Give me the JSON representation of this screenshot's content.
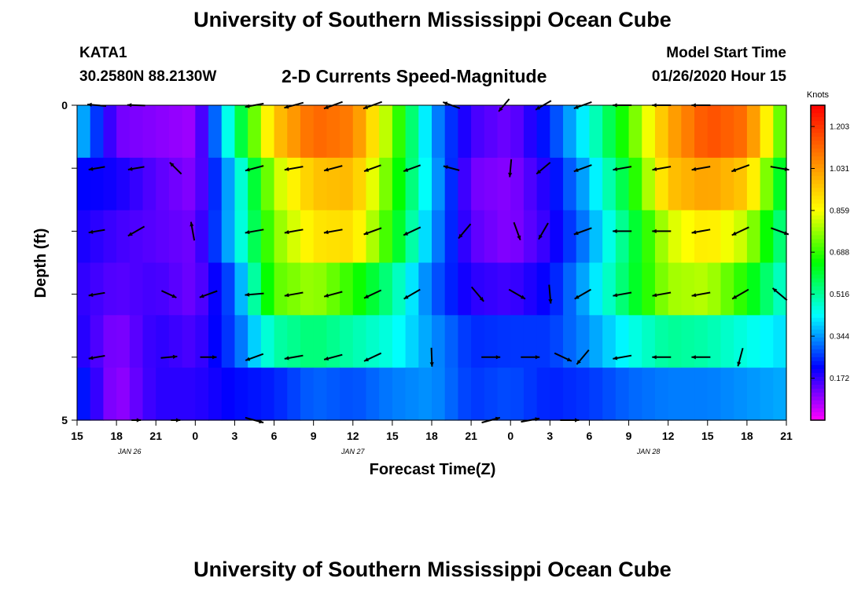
{
  "header": {
    "title": "University of Southern Mississippi Ocean Cube",
    "station_id": "KATA1",
    "station_coords": "30.2580N 88.2130W",
    "plot_title": "2-D Currents Speed-Magnitude",
    "model_start_label": "Model Start Time",
    "model_start_value": "01/26/2020 Hour 15"
  },
  "footer": {
    "title": "University of Southern Mississippi Ocean Cube"
  },
  "chart_data": {
    "type": "heatmap",
    "title": "2-D Currents Speed-Magnitude",
    "xlabel": "Forecast Time(Z)",
    "ylabel": "Depth (ft)",
    "x_range_hours": [
      0,
      54
    ],
    "x_ticks": [
      "15",
      "18",
      "21",
      "0",
      "3",
      "6",
      "9",
      "12",
      "15",
      "18",
      "21",
      "0",
      "3",
      "6",
      "9",
      "12",
      "15",
      "18",
      "21"
    ],
    "date_labels": [
      {
        "text": "JAN  26",
        "hour": 4
      },
      {
        "text": "JAN  27",
        "hour": 21
      },
      {
        "text": "JAN  28",
        "hour": 43.5
      }
    ],
    "y_range_ft": [
      0,
      5
    ],
    "y_tick_labels": [
      {
        "value": 0,
        "label": "0"
      },
      {
        "value": 1,
        "label": ""
      },
      {
        "value": 2,
        "label": ""
      },
      {
        "value": 3,
        "label": ""
      },
      {
        "value": 4,
        "label": ""
      },
      {
        "value": 5,
        "label": "5"
      }
    ],
    "colorbar": {
      "label": "Knots",
      "min": 0.0,
      "max": 1.29,
      "ticks": [
        0.172,
        0.344,
        0.516,
        0.688,
        0.859,
        1.031,
        1.203
      ],
      "colors": [
        "#ff00ff",
        "#0000ff",
        "#00ffff",
        "#00ff00",
        "#ffff00",
        "#ff8000",
        "#ff0000"
      ]
    },
    "speed_layers_note": "Each row is a depth layer; values are speed in knots sampled at forecast hours 0..54 every 3 h.",
    "speed_layers": [
      [
        0.4,
        0.12,
        0.1,
        0.08,
        0.52,
        0.95,
        1.12,
        1.08,
        0.75,
        0.35,
        0.16,
        0.12,
        0.25,
        0.45,
        0.7,
        1.0,
        1.16,
        1.1,
        0.66
      ],
      [
        0.22,
        0.2,
        0.14,
        0.1,
        0.4,
        0.8,
        0.96,
        0.98,
        0.7,
        0.38,
        0.12,
        0.1,
        0.2,
        0.38,
        0.62,
        0.96,
        1.02,
        0.95,
        0.55
      ],
      [
        0.2,
        0.16,
        0.14,
        0.12,
        0.4,
        0.75,
        0.9,
        0.92,
        0.66,
        0.35,
        0.14,
        0.1,
        0.18,
        0.34,
        0.56,
        0.82,
        0.9,
        0.8,
        0.5
      ],
      [
        0.18,
        0.14,
        0.16,
        0.12,
        0.3,
        0.72,
        0.78,
        0.68,
        0.52,
        0.3,
        0.18,
        0.16,
        0.22,
        0.38,
        0.58,
        0.78,
        0.8,
        0.66,
        0.45
      ],
      [
        0.2,
        0.1,
        0.18,
        0.15,
        0.28,
        0.5,
        0.55,
        0.5,
        0.45,
        0.34,
        0.25,
        0.26,
        0.26,
        0.34,
        0.44,
        0.52,
        0.5,
        0.45,
        0.4
      ],
      [
        0.26,
        0.08,
        0.18,
        0.18,
        0.22,
        0.24,
        0.3,
        0.28,
        0.32,
        0.34,
        0.26,
        0.28,
        0.24,
        0.26,
        0.3,
        0.32,
        0.32,
        0.34,
        0.36
      ]
    ],
    "vectors_note": "Current vectors: hour = forecast hour, depth in ft, dir = direction in degrees (0 = east, counter-clockwise), speed in knots.",
    "vectors": [
      {
        "hour": 1.5,
        "depth": 0,
        "dir": 175,
        "speed": 0.4
      },
      {
        "hour": 4.5,
        "depth": 0,
        "dir": 178,
        "speed": 0.38
      },
      {
        "hour": 13.5,
        "depth": 0,
        "dir": 190,
        "speed": 0.4
      },
      {
        "hour": 16.5,
        "depth": 0,
        "dir": 195,
        "speed": 0.42
      },
      {
        "hour": 19.5,
        "depth": 0,
        "dir": 200,
        "speed": 0.42
      },
      {
        "hour": 22.5,
        "depth": 0,
        "dir": 200,
        "speed": 0.42
      },
      {
        "hour": 28.5,
        "depth": 0,
        "dir": 160,
        "speed": 0.38
      },
      {
        "hour": 32.5,
        "depth": 0,
        "dir": 230,
        "speed": 0.35
      },
      {
        "hour": 35.5,
        "depth": 0,
        "dir": 210,
        "speed": 0.38
      },
      {
        "hour": 38.5,
        "depth": 0,
        "dir": 200,
        "speed": 0.4
      },
      {
        "hour": 41.5,
        "depth": 0,
        "dir": 180,
        "speed": 0.4
      },
      {
        "hour": 44.5,
        "depth": 0,
        "dir": 180,
        "speed": 0.4
      },
      {
        "hour": 47.5,
        "depth": 0,
        "dir": 180,
        "speed": 0.4
      },
      {
        "hour": 1.5,
        "depth": 1,
        "dir": 190,
        "speed": 0.35
      },
      {
        "hour": 4.5,
        "depth": 1,
        "dir": 190,
        "speed": 0.35
      },
      {
        "hour": 7.5,
        "depth": 1,
        "dir": 135,
        "speed": 0.35
      },
      {
        "hour": 13.5,
        "depth": 1,
        "dir": 195,
        "speed": 0.4
      },
      {
        "hour": 16.5,
        "depth": 1,
        "dir": 190,
        "speed": 0.4
      },
      {
        "hour": 19.5,
        "depth": 1,
        "dir": 195,
        "speed": 0.4
      },
      {
        "hour": 22.5,
        "depth": 1,
        "dir": 200,
        "speed": 0.38
      },
      {
        "hour": 25.5,
        "depth": 1,
        "dir": 200,
        "speed": 0.38
      },
      {
        "hour": 28.5,
        "depth": 1,
        "dir": 165,
        "speed": 0.35
      },
      {
        "hour": 33.0,
        "depth": 1,
        "dir": 265,
        "speed": 0.38
      },
      {
        "hour": 35.5,
        "depth": 1,
        "dir": 220,
        "speed": 0.38
      },
      {
        "hour": 38.5,
        "depth": 1,
        "dir": 200,
        "speed": 0.4
      },
      {
        "hour": 41.5,
        "depth": 1,
        "dir": 190,
        "speed": 0.4
      },
      {
        "hour": 44.5,
        "depth": 1,
        "dir": 190,
        "speed": 0.4
      },
      {
        "hour": 47.5,
        "depth": 1,
        "dir": 190,
        "speed": 0.4
      },
      {
        "hour": 50.5,
        "depth": 1,
        "dir": 200,
        "speed": 0.4
      },
      {
        "hour": 53.5,
        "depth": 1,
        "dir": 350,
        "speed": 0.4
      },
      {
        "hour": 1.5,
        "depth": 2,
        "dir": 190,
        "speed": 0.35
      },
      {
        "hour": 4.5,
        "depth": 2,
        "dir": 210,
        "speed": 0.4
      },
      {
        "hour": 8.8,
        "depth": 2,
        "dir": 100,
        "speed": 0.4
      },
      {
        "hour": 13.5,
        "depth": 2,
        "dir": 190,
        "speed": 0.4
      },
      {
        "hour": 16.5,
        "depth": 2,
        "dir": 190,
        "speed": 0.4
      },
      {
        "hour": 19.5,
        "depth": 2,
        "dir": 190,
        "speed": 0.4
      },
      {
        "hour": 22.5,
        "depth": 2,
        "dir": 200,
        "speed": 0.4
      },
      {
        "hour": 25.5,
        "depth": 2,
        "dir": 205,
        "speed": 0.4
      },
      {
        "hour": 29.5,
        "depth": 2,
        "dir": 230,
        "speed": 0.4
      },
      {
        "hour": 33.5,
        "depth": 2,
        "dir": 290,
        "speed": 0.4
      },
      {
        "hour": 35.5,
        "depth": 2,
        "dir": 240,
        "speed": 0.4
      },
      {
        "hour": 38.5,
        "depth": 2,
        "dir": 200,
        "speed": 0.4
      },
      {
        "hour": 41.5,
        "depth": 2,
        "dir": 180,
        "speed": 0.4
      },
      {
        "hour": 44.5,
        "depth": 2,
        "dir": 180,
        "speed": 0.4
      },
      {
        "hour": 47.5,
        "depth": 2,
        "dir": 190,
        "speed": 0.4
      },
      {
        "hour": 50.5,
        "depth": 2,
        "dir": 205,
        "speed": 0.4
      },
      {
        "hour": 53.5,
        "depth": 2,
        "dir": 340,
        "speed": 0.4
      },
      {
        "hour": 1.5,
        "depth": 3,
        "dir": 190,
        "speed": 0.35
      },
      {
        "hour": 7.0,
        "depth": 3,
        "dir": 335,
        "speed": 0.35
      },
      {
        "hour": 10.0,
        "depth": 3,
        "dir": 200,
        "speed": 0.4
      },
      {
        "hour": 13.5,
        "depth": 3,
        "dir": 185,
        "speed": 0.4
      },
      {
        "hour": 16.5,
        "depth": 3,
        "dir": 190,
        "speed": 0.4
      },
      {
        "hour": 19.5,
        "depth": 3,
        "dir": 195,
        "speed": 0.4
      },
      {
        "hour": 22.5,
        "depth": 3,
        "dir": 205,
        "speed": 0.4
      },
      {
        "hour": 25.5,
        "depth": 3,
        "dir": 210,
        "speed": 0.4
      },
      {
        "hour": 30.5,
        "depth": 3,
        "dir": 310,
        "speed": 0.4
      },
      {
        "hour": 33.5,
        "depth": 3,
        "dir": 330,
        "speed": 0.4
      },
      {
        "hour": 36.0,
        "depth": 3,
        "dir": 275,
        "speed": 0.4
      },
      {
        "hour": 38.5,
        "depth": 3,
        "dir": 210,
        "speed": 0.4
      },
      {
        "hour": 41.5,
        "depth": 3,
        "dir": 190,
        "speed": 0.4
      },
      {
        "hour": 44.5,
        "depth": 3,
        "dir": 190,
        "speed": 0.4
      },
      {
        "hour": 47.5,
        "depth": 3,
        "dir": 190,
        "speed": 0.4
      },
      {
        "hour": 50.5,
        "depth": 3,
        "dir": 210,
        "speed": 0.4
      },
      {
        "hour": 53.5,
        "depth": 3,
        "dir": 140,
        "speed": 0.4
      },
      {
        "hour": 1.5,
        "depth": 4,
        "dir": 190,
        "speed": 0.35
      },
      {
        "hour": 7.0,
        "depth": 4,
        "dir": 5,
        "speed": 0.35
      },
      {
        "hour": 10.0,
        "depth": 4,
        "dir": 0,
        "speed": 0.35
      },
      {
        "hour": 13.5,
        "depth": 4,
        "dir": 200,
        "speed": 0.4
      },
      {
        "hour": 16.5,
        "depth": 4,
        "dir": 190,
        "speed": 0.4
      },
      {
        "hour": 19.5,
        "depth": 4,
        "dir": 195,
        "speed": 0.4
      },
      {
        "hour": 22.5,
        "depth": 4,
        "dir": 205,
        "speed": 0.4
      },
      {
        "hour": 27.0,
        "depth": 4,
        "dir": 272,
        "speed": 0.4
      },
      {
        "hour": 31.5,
        "depth": 4,
        "dir": 0,
        "speed": 0.4
      },
      {
        "hour": 34.5,
        "depth": 4,
        "dir": 0,
        "speed": 0.4
      },
      {
        "hour": 37.0,
        "depth": 4,
        "dir": 335,
        "speed": 0.4
      },
      {
        "hour": 38.5,
        "depth": 4,
        "dir": 230,
        "speed": 0.4
      },
      {
        "hour": 41.5,
        "depth": 4,
        "dir": 190,
        "speed": 0.4
      },
      {
        "hour": 44.5,
        "depth": 4,
        "dir": 180,
        "speed": 0.4
      },
      {
        "hour": 47.5,
        "depth": 4,
        "dir": 180,
        "speed": 0.4
      },
      {
        "hour": 50.5,
        "depth": 4,
        "dir": 255,
        "speed": 0.4
      },
      {
        "hour": 4.5,
        "depth": 5,
        "dir": 0,
        "speed": 0.2
      },
      {
        "hour": 7.5,
        "depth": 5,
        "dir": 0,
        "speed": 0.2
      },
      {
        "hour": 13.5,
        "depth": 5,
        "dir": 345,
        "speed": 0.4
      },
      {
        "hour": 31.5,
        "depth": 5,
        "dir": 15,
        "speed": 0.4
      },
      {
        "hour": 34.5,
        "depth": 5,
        "dir": 10,
        "speed": 0.4
      },
      {
        "hour": 37.5,
        "depth": 5,
        "dir": 0,
        "speed": 0.4
      }
    ]
  }
}
